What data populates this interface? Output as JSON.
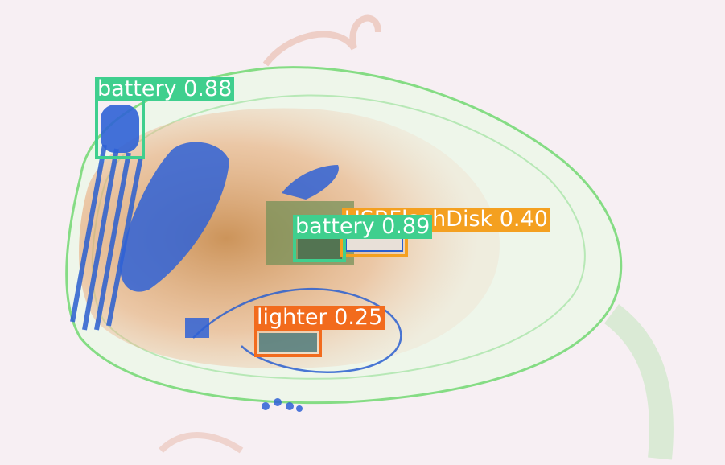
{
  "image": {
    "description_colors": {
      "background": "#f7eff3",
      "bag_outline": "#7fdc7f",
      "organic": "#e8a070",
      "metal": "#2a5fd0"
    }
  },
  "detections": [
    {
      "label": "battery",
      "score": "0.88",
      "text": "battery 0.88",
      "color": "#3fcf8e"
    },
    {
      "label": "USB Flash Disk",
      "score": "0.40",
      "text": "USBFlashDisk 0.40",
      "color": "#f4a020"
    },
    {
      "label": "battery",
      "score": "0.89",
      "text": "battery 0.89",
      "color": "#3fcf8e"
    },
    {
      "label": "lighter",
      "score": "0.25",
      "text": "lighter 0.25",
      "color": "#f26b1d"
    }
  ]
}
